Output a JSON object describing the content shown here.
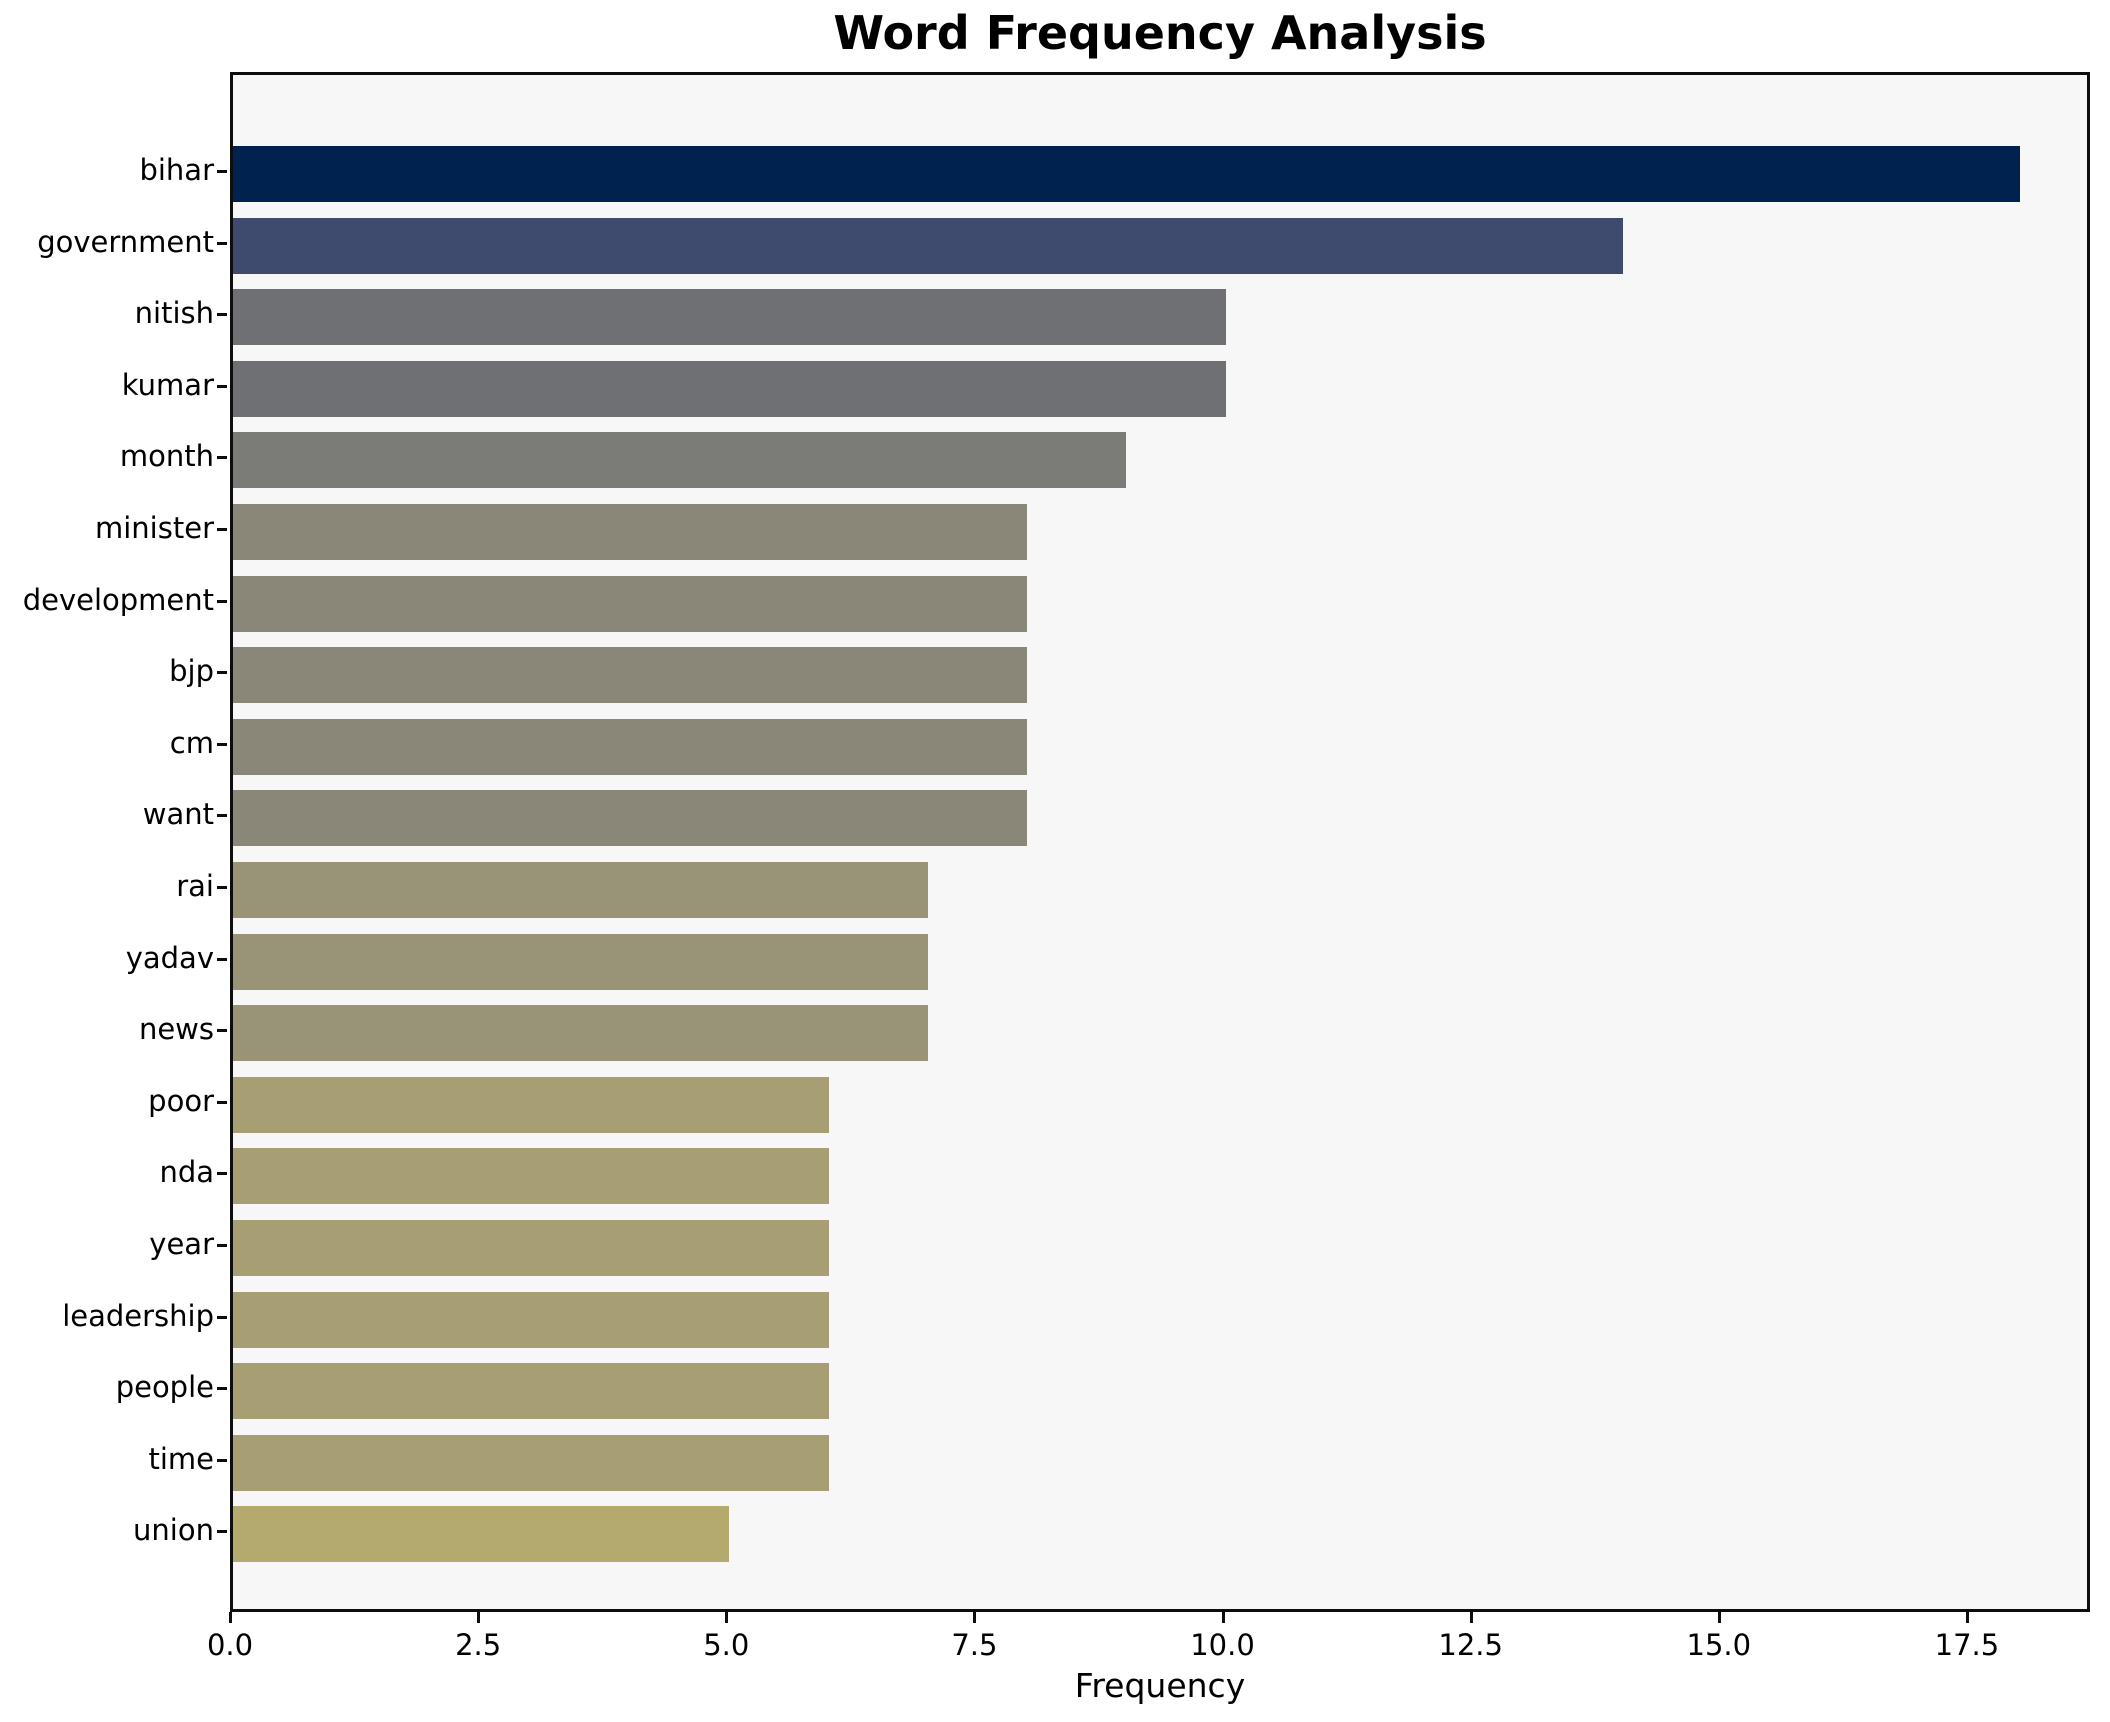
{
  "chart_data": {
    "type": "bar",
    "orientation": "horizontal",
    "title": "Word Frequency Analysis",
    "xlabel": "Frequency",
    "ylabel": "",
    "categories": [
      "bihar",
      "government",
      "nitish",
      "kumar",
      "month",
      "minister",
      "development",
      "bjp",
      "cm",
      "want",
      "rai",
      "yadav",
      "news",
      "poor",
      "nda",
      "year",
      "leadership",
      "people",
      "time",
      "union"
    ],
    "values": [
      18,
      14,
      10,
      10,
      9,
      8,
      8,
      8,
      8,
      8,
      7,
      7,
      7,
      6,
      6,
      6,
      6,
      6,
      6,
      5
    ],
    "bar_colors": [
      "#00224e",
      "#3e4a6e",
      "#6f7073",
      "#6f7073",
      "#7b7b77",
      "#8a8779",
      "#8a8779",
      "#8a8779",
      "#8a8779",
      "#8a8779",
      "#999377",
      "#999377",
      "#999377",
      "#a79e74",
      "#a79e74",
      "#a79e74",
      "#a79e74",
      "#a79e74",
      "#a79e74",
      "#b5aa6e"
    ],
    "xlim": [
      0,
      18.74
    ],
    "x_tick_values": [
      0,
      2.5,
      5,
      7.5,
      10,
      12.5,
      15,
      17.5
    ],
    "x_tick_labels": [
      "0.0",
      "2.5",
      "5.0",
      "7.5",
      "10.0",
      "12.5",
      "15.0",
      "17.5"
    ],
    "grid": false,
    "legend": null,
    "colormap_note": "cividis-like gradient dark navy to khaki by descending frequency",
    "colors": {
      "figure_bg": "#ffffff",
      "axes_bg": "#f7f7f8",
      "spine": "#0d0d0d",
      "text": "#000000"
    }
  }
}
